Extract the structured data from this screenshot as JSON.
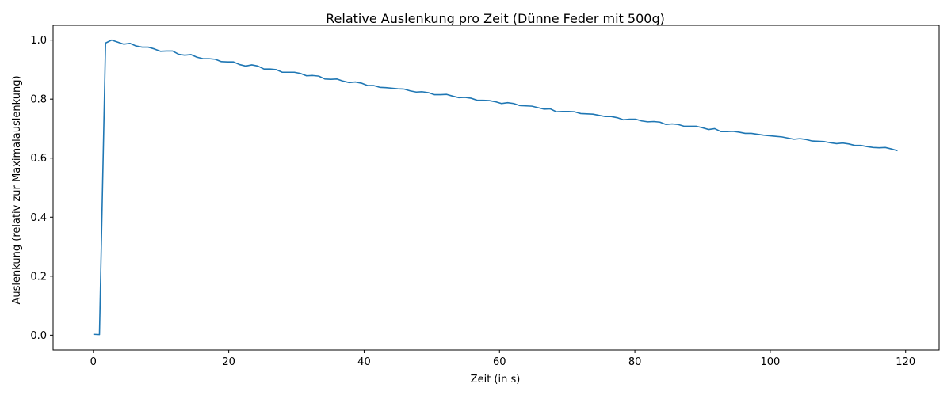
{
  "chart_data": {
    "type": "line",
    "title": "Relative Auslenkung pro Zeit (Dünne Feder mit 500g)",
    "xlabel": "Zeit (in s)",
    "ylabel": "Auslenkung (relativ zur Maximalauslenkung)",
    "xlim": [
      -5.95,
      124.95
    ],
    "ylim": [
      -0.05,
      1.05
    ],
    "x_ticks": [
      0,
      20,
      40,
      60,
      80,
      100,
      120
    ],
    "y_ticks": [
      0.0,
      0.2,
      0.4,
      0.6,
      0.8,
      1.0
    ],
    "x_tick_labels": [
      "0",
      "20",
      "40",
      "60",
      "80",
      "100",
      "120"
    ],
    "y_tick_labels": [
      "0.0",
      "0.2",
      "0.4",
      "0.6",
      "0.8",
      "1.0"
    ],
    "grid": false,
    "line_color": "#1f77b4",
    "series": [
      {
        "x": [
          0,
          0.9,
          1.8,
          2.7,
          3.6,
          4.5,
          5.4,
          6.3,
          7.2,
          8.1,
          9,
          9.9,
          10.8,
          11.7,
          12.6,
          13.5,
          14.4,
          15.3,
          16.2,
          17.1,
          18,
          18.9,
          19.8,
          20.7,
          21.6,
          22.5,
          23.4,
          24.3,
          25.2,
          26.1,
          27,
          27.9,
          28.8,
          29.7,
          30.6,
          31.5,
          32.4,
          33.3,
          34.2,
          35.1,
          36,
          36.9,
          37.8,
          38.7,
          39.6,
          40.5,
          41.4,
          42.3,
          43.2,
          44.1,
          45,
          45.9,
          46.8,
          47.7,
          48.6,
          49.5,
          50.4,
          51.3,
          52.2,
          53.1,
          54,
          54.9,
          55.8,
          56.7,
          57.6,
          58.5,
          59.4,
          60.3,
          61.2,
          62.1,
          63,
          63.9,
          64.8,
          65.7,
          66.6,
          67.5,
          68.4,
          69.3,
          70.2,
          71.1,
          72,
          72.9,
          73.8,
          74.7,
          75.6,
          76.5,
          77.4,
          78.3,
          79.2,
          80.1,
          81,
          81.9,
          82.8,
          83.7,
          84.6,
          85.5,
          86.4,
          87.3,
          88.2,
          89.1,
          90,
          90.9,
          91.8,
          92.7,
          93.6,
          94.5,
          95.4,
          96.3,
          97.2,
          98.1,
          99,
          99.9,
          100.8,
          101.7,
          102.6,
          103.5,
          104.4,
          105.3,
          106.2,
          107.1,
          108,
          108.9,
          109.8,
          110.7,
          111.6,
          112.5,
          113.4,
          114.3,
          115.2,
          116.1,
          117,
          117.9,
          118.8
        ],
        "y": [
          0.003,
          0.002,
          0.99,
          1.0,
          0.993,
          0.986,
          0.989,
          0.98,
          0.976,
          0.976,
          0.97,
          0.962,
          0.963,
          0.963,
          0.952,
          0.949,
          0.951,
          0.942,
          0.937,
          0.937,
          0.935,
          0.927,
          0.926,
          0.926,
          0.917,
          0.912,
          0.916,
          0.912,
          0.902,
          0.902,
          0.9,
          0.891,
          0.891,
          0.891,
          0.887,
          0.879,
          0.88,
          0.878,
          0.868,
          0.867,
          0.868,
          0.861,
          0.856,
          0.858,
          0.854,
          0.846,
          0.846,
          0.84,
          0.839,
          0.837,
          0.835,
          0.834,
          0.828,
          0.824,
          0.825,
          0.822,
          0.815,
          0.815,
          0.816,
          0.81,
          0.805,
          0.806,
          0.803,
          0.796,
          0.796,
          0.795,
          0.791,
          0.785,
          0.788,
          0.785,
          0.778,
          0.777,
          0.776,
          0.771,
          0.766,
          0.767,
          0.757,
          0.758,
          0.758,
          0.757,
          0.751,
          0.75,
          0.749,
          0.745,
          0.741,
          0.741,
          0.737,
          0.73,
          0.732,
          0.732,
          0.726,
          0.723,
          0.724,
          0.722,
          0.714,
          0.716,
          0.714,
          0.708,
          0.708,
          0.708,
          0.703,
          0.697,
          0.7,
          0.69,
          0.69,
          0.691,
          0.688,
          0.684,
          0.684,
          0.681,
          0.678,
          0.676,
          0.674,
          0.672,
          0.668,
          0.664,
          0.666,
          0.663,
          0.658,
          0.657,
          0.656,
          0.652,
          0.649,
          0.651,
          0.648,
          0.643,
          0.643,
          0.639,
          0.636,
          0.635,
          0.636,
          0.631,
          0.625
        ]
      }
    ]
  }
}
